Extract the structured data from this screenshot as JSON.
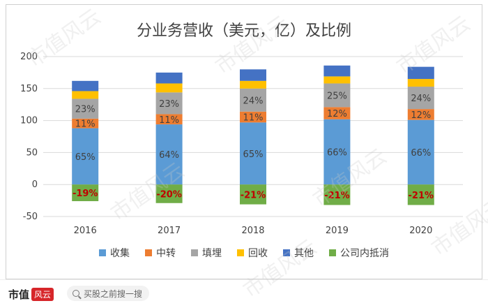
{
  "chart_data": {
    "type": "bar",
    "title": "分业务营收（美元，亿）及比例",
    "categories": [
      "2016",
      "2017",
      "2018",
      "2019",
      "2020"
    ],
    "series": [
      {
        "name": "收集",
        "color": "#5b9bd5",
        "values": [
          88,
          94,
          97,
          102,
          101
        ],
        "labels": [
          "65%",
          "64%",
          "65%",
          "66%",
          "66%"
        ]
      },
      {
        "name": "中转",
        "color": "#ed7d31",
        "values": [
          15,
          16,
          17,
          19,
          17
        ],
        "labels": [
          "11%",
          "11%",
          "11%",
          "12%",
          "12%"
        ]
      },
      {
        "name": "填埋",
        "color": "#a5a5a5",
        "values": [
          31,
          34,
          36,
          37,
          35
        ],
        "labels": [
          "23%",
          "23%",
          "24%",
          "25%",
          "24%"
        ]
      },
      {
        "name": "回收",
        "color": "#ffc000",
        "values": [
          12,
          14,
          12,
          11,
          12
        ],
        "labels": [
          "",
          "",
          "",
          "",
          ""
        ]
      },
      {
        "name": "其他",
        "color": "#4472c4",
        "values": [
          16,
          17,
          18,
          17,
          19
        ],
        "labels": [
          "",
          "",
          "",
          "",
          ""
        ]
      },
      {
        "name": "公司内抵消",
        "color": "#70ad47",
        "values": [
          -26,
          -29,
          -31,
          -32,
          -32
        ],
        "labels": [
          "-19%",
          "-20%",
          "-21%",
          "-21%",
          "-21%"
        ]
      }
    ],
    "ylim": [
      -50,
      200
    ],
    "yticks": [
      -50,
      0,
      50,
      100,
      150,
      200
    ],
    "grid": true,
    "legend_position": "bottom"
  },
  "footer": {
    "brand_text": "市值",
    "brand_seal": "风云",
    "search_label": "买股之前搜一搜"
  },
  "watermark_text": "市值风云"
}
